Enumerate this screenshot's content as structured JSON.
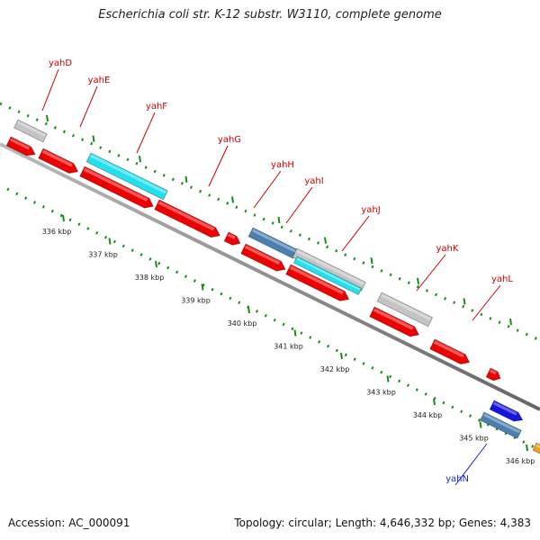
{
  "title": "Escherichia coli str. K-12 substr. W3110, complete genome",
  "footer": {
    "accession": "Accession: AC_000091",
    "summary": "Topology: circular; Length: 4,646,332 bp; Genes: 4,383"
  },
  "colors": {
    "cds_red": "#ee0000",
    "gene_grey": "#c4c4c4",
    "gene_cyan": "#22e0f0",
    "gene_steelblue": "#4a7fb0",
    "gene_blue": "#1515dd",
    "gene_orange": "#f0a020",
    "tick_green": "#1a8a1a",
    "label_red": "#cc0000",
    "label_blue": "#1a2bd6",
    "backbone": "#888888"
  },
  "genome_labels": [
    {
      "name": "yahD",
      "color": "red"
    },
    {
      "name": "yahE",
      "color": "red"
    },
    {
      "name": "yahF",
      "color": "red"
    },
    {
      "name": "yahG",
      "color": "red"
    },
    {
      "name": "yahH",
      "color": "red"
    },
    {
      "name": "yahI",
      "color": "red"
    },
    {
      "name": "yahJ",
      "color": "red"
    },
    {
      "name": "yahK",
      "color": "red"
    },
    {
      "name": "yahL",
      "color": "red"
    },
    {
      "name": "yahN",
      "color": "blue"
    }
  ],
  "position_ticks": [
    "336 kbp",
    "337 kbp",
    "338 kbp",
    "339 kbp",
    "340 kbp",
    "341 kbp",
    "342 kbp",
    "343 kbp",
    "344 kbp",
    "345 kbp",
    "346 kbp"
  ]
}
